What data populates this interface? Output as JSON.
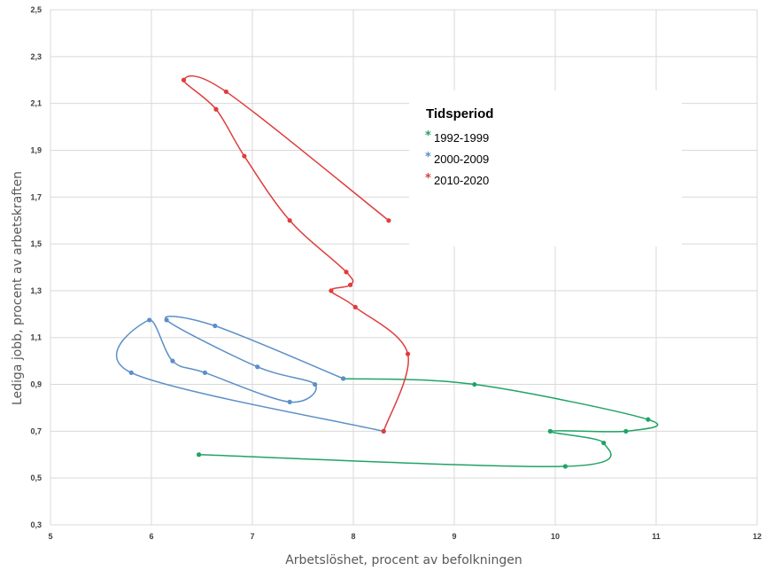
{
  "chart_data": {
    "type": "line",
    "xlabel": "Arbetslöshet, procent av befolkningen",
    "ylabel": "Lediga jobb, procent av arbetskraften",
    "xlim": [
      5,
      12
    ],
    "ylim": [
      0.3,
      2.5
    ],
    "x_ticks": [
      "5",
      "6",
      "7",
      "8",
      "9",
      "10",
      "11",
      "12"
    ],
    "y_ticks": [
      "0,3",
      "0,5",
      "0,7",
      "0,9",
      "1,1",
      "1,3",
      "1,5",
      "1,7",
      "1,9",
      "2,1",
      "2,3",
      "2,5"
    ],
    "grid": true,
    "legend": {
      "title": "Tidsperiod",
      "position": "top-center",
      "marker": "*"
    },
    "series": [
      {
        "name": "1992-1999",
        "color": "#21a366",
        "points": [
          [
            6.47,
            0.6
          ],
          [
            10.1,
            0.55
          ],
          [
            10.48,
            0.65
          ],
          [
            9.95,
            0.7
          ],
          [
            10.7,
            0.7
          ],
          [
            10.92,
            0.75
          ],
          [
            9.2,
            0.9
          ],
          [
            7.9,
            0.925
          ]
        ]
      },
      {
        "name": "2000-2009",
        "color": "#5b8fc7",
        "points": [
          [
            7.9,
            0.925
          ],
          [
            6.63,
            1.15
          ],
          [
            6.15,
            1.175
          ],
          [
            7.05,
            0.975
          ],
          [
            7.62,
            0.9
          ],
          [
            7.37,
            0.825
          ],
          [
            6.53,
            0.95
          ],
          [
            6.21,
            1.0
          ],
          [
            5.98,
            1.175
          ],
          [
            5.8,
            0.95
          ],
          [
            8.3,
            0.7
          ]
        ]
      },
      {
        "name": "2010-2020",
        "color": "#e03c3c",
        "points": [
          [
            8.3,
            0.7
          ],
          [
            8.54,
            1.03
          ],
          [
            8.02,
            1.23
          ],
          [
            7.78,
            1.3
          ],
          [
            7.97,
            1.325
          ],
          [
            7.93,
            1.38
          ],
          [
            7.37,
            1.6
          ],
          [
            6.92,
            1.875
          ],
          [
            6.64,
            2.075
          ],
          [
            6.32,
            2.2
          ],
          [
            6.74,
            2.15
          ],
          [
            8.35,
            1.6
          ]
        ]
      }
    ]
  }
}
